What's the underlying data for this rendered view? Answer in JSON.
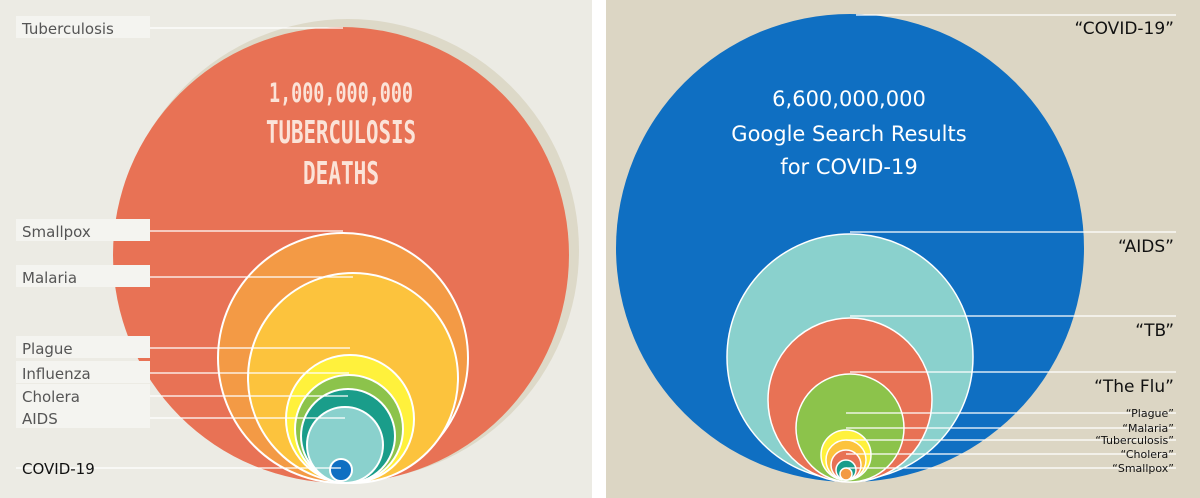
{
  "left": {
    "headline": [
      "1,000,000,000",
      "TUBERCULOSIS",
      "DEATHS"
    ],
    "circles": [
      {
        "label": "Tuberculosis",
        "value": 1000000000,
        "color": "#e87255"
      },
      {
        "label": "Smallpox",
        "value": 300000000,
        "color": "#f39a45"
      },
      {
        "label": "Malaria",
        "value": 250000000,
        "color": "#fcc33d"
      },
      {
        "label": "Plague",
        "value": 50000000,
        "color": "#fff13c"
      },
      {
        "label": "Influenza",
        "value": 40000000,
        "color": "#8cc34b"
      },
      {
        "label": "Cholera",
        "value": 35000000,
        "color": "#1a9d8a"
      },
      {
        "label": "AIDS",
        "value": 25000000,
        "color": "#8ad1cd"
      },
      {
        "label": "COVID-19",
        "value": 1000000,
        "color": "#0f6fc2"
      }
    ],
    "colors": {
      "background": "#ecebe4",
      "shadow": "#ddd9c8",
      "label_box": "#f4f4f0"
    }
  },
  "right": {
    "headline": [
      "6,600,000,000",
      "Google Search Results",
      "for COVID-19"
    ],
    "circles": [
      {
        "label": "“COVID-19”",
        "value": 6600000000,
        "color": "#0f6fc2"
      },
      {
        "label": "“AIDS”",
        "value": 1500000000,
        "color": "#8ad1cd"
      },
      {
        "label": "“TB”",
        "value": 700000000,
        "color": "#e87255"
      },
      {
        "label": "“The Flu”",
        "value": 300000000,
        "color": "#8cc34b"
      },
      {
        "label": "“Plague”",
        "value": 40000000,
        "color": "#fff13c"
      },
      {
        "label": "“Malaria”",
        "value": 30000000,
        "color": "#fcc33d"
      },
      {
        "label": "“Tuberculosis”",
        "value": 20000000,
        "color": "#e87255"
      },
      {
        "label": "“Cholera”",
        "value": 15000000,
        "color": "#1a9d8a"
      },
      {
        "label": "“Smallpox”",
        "value": 8000000,
        "color": "#f39a45"
      }
    ],
    "colors": {
      "background": "#dcd6c4"
    }
  }
}
